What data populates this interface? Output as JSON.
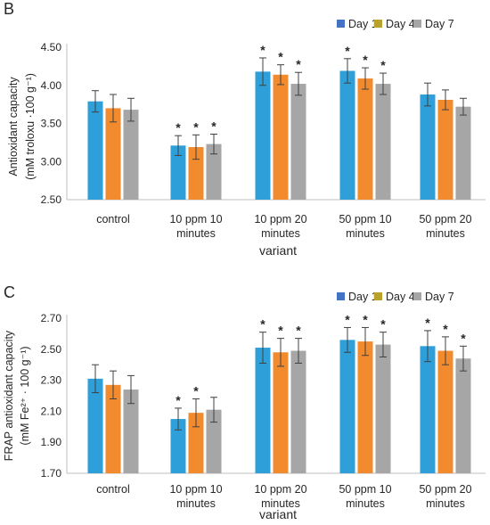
{
  "chart_data": [
    {
      "type": "bar",
      "panel_label": "B",
      "categories": [
        "control",
        "10 ppm 10 minutes",
        "10 ppm 20 minutes",
        "50 ppm 10 minutes",
        "50 ppm 20 minutes"
      ],
      "category_lines": [
        [
          "control"
        ],
        [
          "10 ppm 10",
          "minutes"
        ],
        [
          "10 ppm 20",
          "minutes"
        ],
        [
          "50 ppm 10",
          "minutes"
        ],
        [
          "50 ppm 20",
          "minutes"
        ]
      ],
      "series": [
        {
          "name": "Day 1",
          "color": "#2e9fd9",
          "legend_color": "#4472c4",
          "values": [
            3.79,
            3.21,
            4.18,
            4.19,
            3.88
          ],
          "errors": [
            0.14,
            0.13,
            0.18,
            0.16,
            0.15
          ],
          "significant": [
            false,
            true,
            true,
            true,
            false
          ]
        },
        {
          "name": "Day 4",
          "color": "#f28a2e",
          "legend_color": "#b8a22c",
          "values": [
            3.7,
            3.19,
            4.14,
            4.09,
            3.81
          ],
          "errors": [
            0.18,
            0.16,
            0.13,
            0.14,
            0.13
          ],
          "significant": [
            false,
            true,
            true,
            true,
            false
          ]
        },
        {
          "name": "Day 7",
          "color": "#a6a6a6",
          "legend_color": "#a6a6a6",
          "values": [
            3.68,
            3.23,
            4.02,
            4.02,
            3.72
          ],
          "errors": [
            0.15,
            0.13,
            0.15,
            0.14,
            0.11
          ],
          "significant": [
            false,
            true,
            true,
            true,
            false
          ]
        }
      ],
      "significance_marker": "*",
      "xlabel": "variant",
      "ylabel_lines": [
        "Antioxidant capacity",
        "(mM troloxu ·100 g⁻¹)"
      ],
      "ylim": [
        2.5,
        4.5
      ],
      "yticks": [
        "2.50",
        "3.00",
        "3.50",
        "4.00",
        "4.50"
      ],
      "grid": false,
      "legend_position": "top-right"
    },
    {
      "type": "bar",
      "panel_label": "C",
      "categories": [
        "control",
        "10 ppm 10 minutes",
        "10 ppm 20 minutes",
        "50 ppm 10 minutes",
        "50 ppm 20 minutes"
      ],
      "category_lines": [
        [
          "control"
        ],
        [
          "10 ppm 10",
          "minutes"
        ],
        [
          "10 ppm 20",
          "minutes"
        ],
        [
          "50 ppm 10",
          "minutes"
        ],
        [
          "50 ppm 20",
          "minutes"
        ]
      ],
      "series": [
        {
          "name": "Day 1",
          "color": "#2e9fd9",
          "legend_color": "#4472c4",
          "values": [
            2.31,
            2.05,
            2.51,
            2.56,
            2.52
          ],
          "errors": [
            0.09,
            0.07,
            0.1,
            0.08,
            0.1
          ],
          "significant": [
            false,
            true,
            true,
            true,
            true
          ]
        },
        {
          "name": "Day 4",
          "color": "#f28a2e",
          "legend_color": "#b8a22c",
          "values": [
            2.27,
            2.09,
            2.48,
            2.55,
            2.49
          ],
          "errors": [
            0.09,
            0.09,
            0.09,
            0.09,
            0.09
          ],
          "significant": [
            false,
            true,
            true,
            true,
            true
          ]
        },
        {
          "name": "Day 7",
          "color": "#a6a6a6",
          "legend_color": "#a6a6a6",
          "values": [
            2.24,
            2.11,
            2.49,
            2.53,
            2.44
          ],
          "errors": [
            0.09,
            0.08,
            0.08,
            0.08,
            0.08
          ],
          "significant": [
            false,
            false,
            true,
            true,
            true
          ]
        }
      ],
      "significance_marker": "*",
      "xlabel": "variant",
      "ylabel_lines": [
        "FRAP antioxidant capacity",
        "(mM Fe²⁺ · 100 g⁻¹)"
      ],
      "ylim": [
        1.7,
        2.7
      ],
      "yticks": [
        "1.70",
        "1.90",
        "2.10",
        "2.30",
        "2.50",
        "2.70"
      ],
      "grid": false,
      "legend_position": "top-right"
    }
  ]
}
